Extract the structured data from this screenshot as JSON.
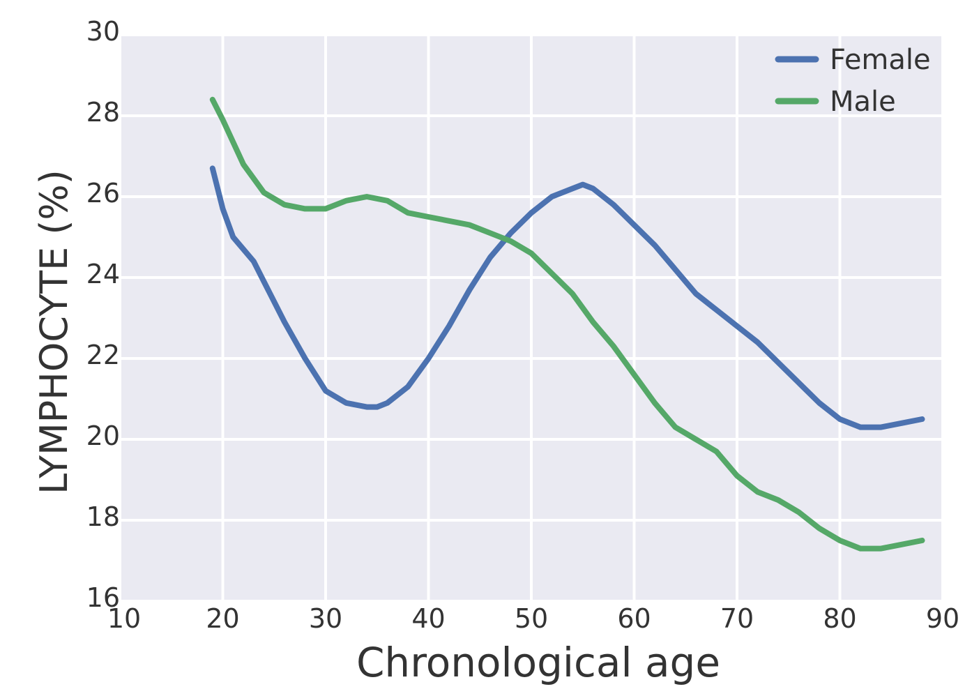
{
  "chart_data": {
    "type": "line",
    "title": "",
    "xlabel": "Chronological age",
    "ylabel": "LYMPHOCYTE (%)",
    "xlim": [
      10,
      90
    ],
    "ylim": [
      16,
      30
    ],
    "xticks": [
      "10",
      "20",
      "30",
      "40",
      "50",
      "60",
      "70",
      "80",
      "90"
    ],
    "yticks": [
      "16",
      "18",
      "20",
      "22",
      "24",
      "26",
      "28",
      "30"
    ],
    "grid": true,
    "legend_position": "top-right",
    "background_color": "#eaeaf2",
    "series": [
      {
        "name": "Female",
        "color": "#4c72b0",
        "x": [
          19,
          20,
          21,
          23,
          24,
          26,
          28,
          30,
          32,
          34,
          35,
          36,
          38,
          40,
          42,
          44,
          46,
          48,
          50,
          52,
          54,
          55,
          56,
          58,
          60,
          62,
          64,
          66,
          68,
          70,
          72,
          74,
          76,
          78,
          80,
          82,
          84,
          86,
          88
        ],
        "y": [
          26.7,
          25.7,
          25.0,
          24.4,
          23.9,
          22.9,
          22.0,
          21.2,
          20.9,
          20.8,
          20.8,
          20.9,
          21.3,
          22.0,
          22.8,
          23.7,
          24.5,
          25.1,
          25.6,
          26.0,
          26.2,
          26.3,
          26.2,
          25.8,
          25.3,
          24.8,
          24.2,
          23.6,
          23.2,
          22.8,
          22.4,
          21.9,
          21.4,
          20.9,
          20.5,
          20.3,
          20.3,
          20.4,
          20.5
        ]
      },
      {
        "name": "Male",
        "color": "#55a868",
        "x": [
          19,
          20,
          22,
          24,
          26,
          28,
          30,
          32,
          34,
          36,
          38,
          40,
          42,
          44,
          46,
          48,
          50,
          52,
          54,
          56,
          58,
          60,
          62,
          64,
          66,
          68,
          70,
          72,
          74,
          76,
          78,
          80,
          82,
          84,
          86,
          88
        ],
        "y": [
          28.4,
          27.9,
          26.8,
          26.1,
          25.8,
          25.7,
          25.7,
          25.9,
          26.0,
          25.9,
          25.6,
          25.5,
          25.4,
          25.3,
          25.1,
          24.9,
          24.6,
          24.1,
          23.6,
          22.9,
          22.3,
          21.6,
          20.9,
          20.3,
          20.0,
          19.7,
          19.1,
          18.7,
          18.5,
          18.2,
          17.8,
          17.5,
          17.3,
          17.3,
          17.4,
          17.5
        ]
      }
    ]
  }
}
